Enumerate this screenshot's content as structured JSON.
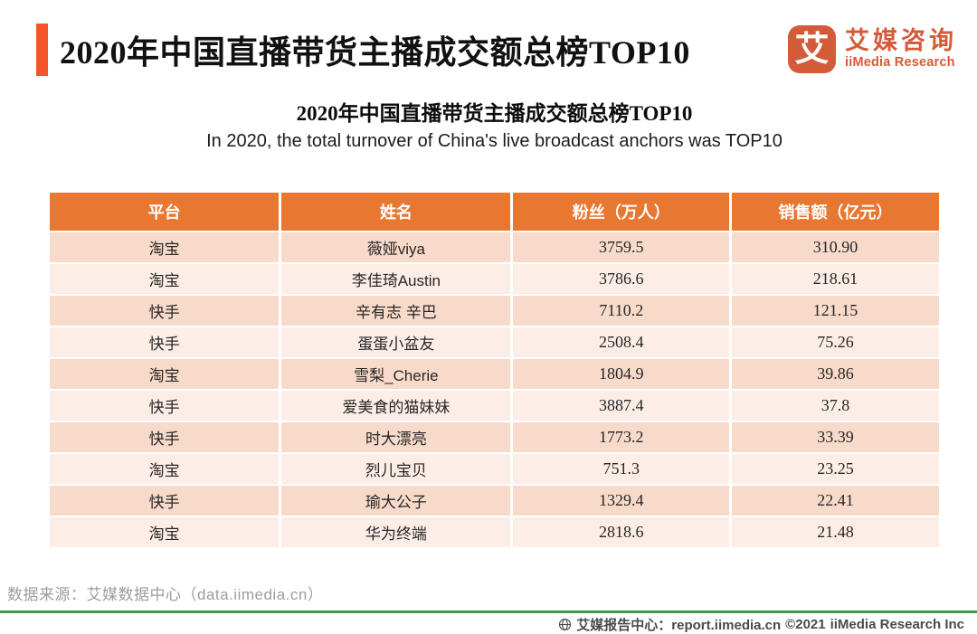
{
  "header": {
    "title": "2020年中国直播带货主播成交额总榜TOP10",
    "logo": {
      "glyph": "艾",
      "name_cn": "艾媒咨询",
      "name_en": "iiMedia Research"
    }
  },
  "subtitle_cn": "2020年中国直播带货主播成交额总榜TOP10",
  "subtitle_en": "In 2020, the total turnover of China's live broadcast anchors was TOP10",
  "chart_data": {
    "type": "table",
    "title": "2020年中国直播带货主播成交额总榜TOP10",
    "columns": [
      "平台",
      "姓名",
      "粉丝（万人）",
      "销售额（亿元）"
    ],
    "rows": [
      [
        "淘宝",
        "薇娅viya",
        "3759.5",
        "310.90"
      ],
      [
        "淘宝",
        "李佳琦Austin",
        "3786.6",
        "218.61"
      ],
      [
        "快手",
        "辛有志 辛巴",
        "7110.2",
        "121.15"
      ],
      [
        "快手",
        "蛋蛋小盆友",
        "2508.4",
        "75.26"
      ],
      [
        "淘宝",
        "雪梨_Cherie",
        "1804.9",
        "39.86"
      ],
      [
        "快手",
        "爱美食的猫妹妹",
        "3887.4",
        "37.8"
      ],
      [
        "快手",
        "时大漂亮",
        "1773.2",
        "33.39"
      ],
      [
        "淘宝",
        "烈儿宝贝",
        "751.3",
        "23.25"
      ],
      [
        "快手",
        "瑜大公子",
        "1329.4",
        "22.41"
      ],
      [
        "淘宝",
        "华为终端",
        "2818.6",
        "21.48"
      ]
    ]
  },
  "footer": {
    "source": "数据来源：艾媒数据中心（data.iimedia.cn）",
    "report_center": "艾媒报告中心：report.iimedia.cn",
    "copyright": "©2021",
    "company": "iiMedia Research  Inc"
  },
  "colors": {
    "accent_bar": "#F4552B",
    "logo_orange": "#D45B39",
    "header_bg": "#E87732",
    "row_odd": "#F8DACA",
    "row_even": "#FCEEE7",
    "green_line": "#3C9B43",
    "source_gray": "#9C9C9C",
    "footer_gray": "#4A4A4A",
    "title_color": "#111111"
  }
}
